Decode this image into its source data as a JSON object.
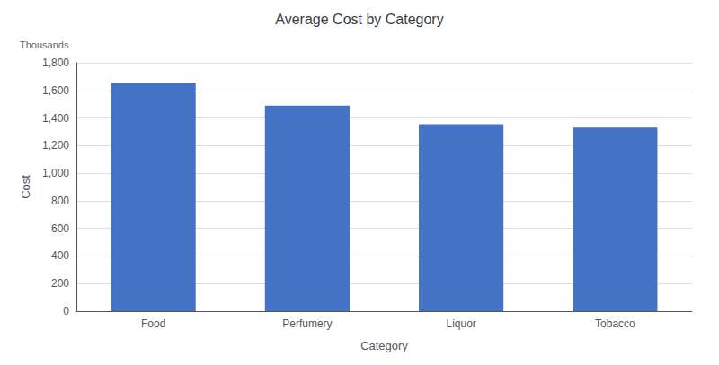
{
  "chart_data": {
    "type": "bar",
    "title": "Average Cost by Category",
    "categories": [
      "Food",
      "Perfumery",
      "Liquor",
      "Tobacco"
    ],
    "values": [
      1655,
      1490,
      1355,
      1330
    ],
    "color": "#4472c4",
    "xlabel": "Category",
    "ylabel": "Cost",
    "annotations": [
      "Thousands"
    ],
    "ylim": [
      0,
      1800
    ],
    "yticks": [
      0,
      200,
      400,
      600,
      800,
      {
        "value": 1000,
        "label": "1,000"
      },
      {
        "value": 1200,
        "label": "1,200"
      },
      {
        "value": 1400,
        "label": "1,400"
      },
      {
        "value": 1600,
        "label": "1,600"
      },
      {
        "value": 1800,
        "label": "1,800"
      }
    ],
    "grid": true
  }
}
